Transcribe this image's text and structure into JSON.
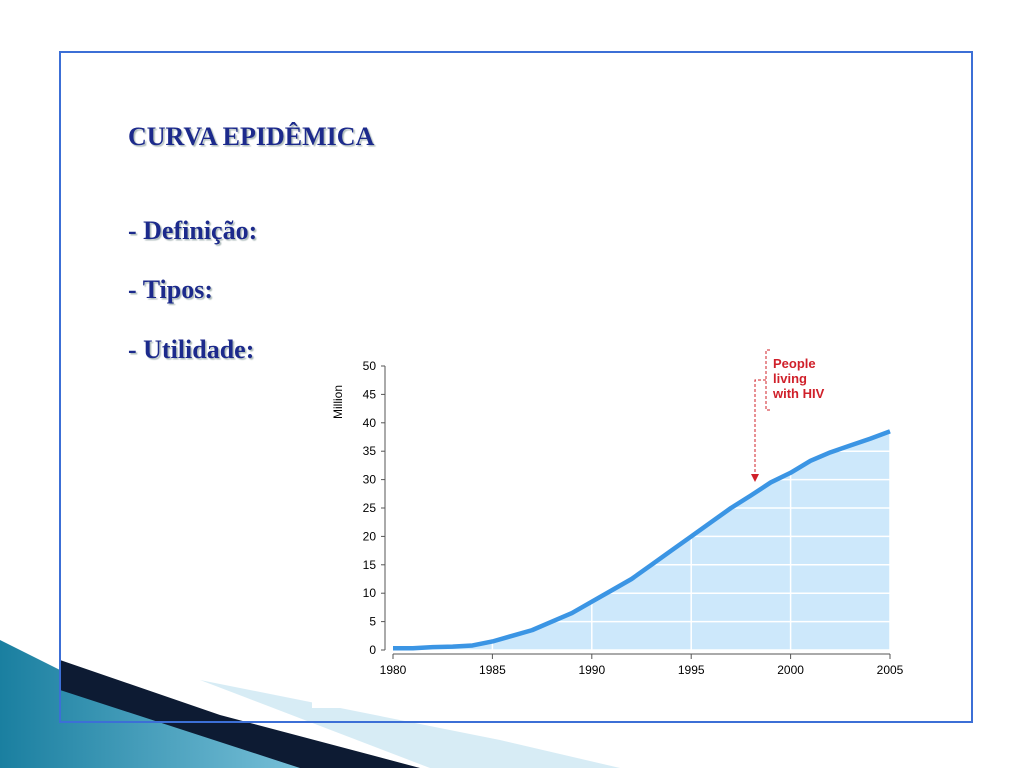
{
  "slide": {
    "title": "CURVA EPIDÊMICA",
    "bullets": [
      "- Definição:",
      "- Tipos:",
      "- Utilidade:"
    ]
  },
  "chart_data": {
    "type": "area",
    "ylabel": "Million",
    "annotation": [
      "People",
      "living",
      "with HIV"
    ],
    "x": [
      1980,
      1981,
      1982,
      1983,
      1984,
      1985,
      1986,
      1987,
      1988,
      1989,
      1990,
      1991,
      1992,
      1993,
      1994,
      1995,
      1996,
      1997,
      1998,
      1999,
      2000,
      2001,
      2002,
      2003,
      2004,
      2005
    ],
    "values": [
      0.3,
      0.3,
      0.5,
      0.6,
      0.8,
      1.5,
      2.5,
      3.5,
      5,
      6.5,
      8.5,
      10.5,
      12.5,
      15,
      17.5,
      20,
      22.5,
      25,
      27.2,
      29.5,
      31.2,
      33.3,
      34.8,
      36,
      37.2,
      38.5
    ],
    "color": "#3b95e4",
    "fill": "#cde8fb",
    "xlim": [
      1980,
      2005
    ],
    "xticks": [
      1980,
      1985,
      1990,
      1995,
      2000,
      2005
    ],
    "ylim": [
      0,
      50
    ],
    "yticks": [
      0,
      5,
      10,
      15,
      20,
      25,
      30,
      35,
      40,
      45,
      50
    ],
    "grid": true
  }
}
